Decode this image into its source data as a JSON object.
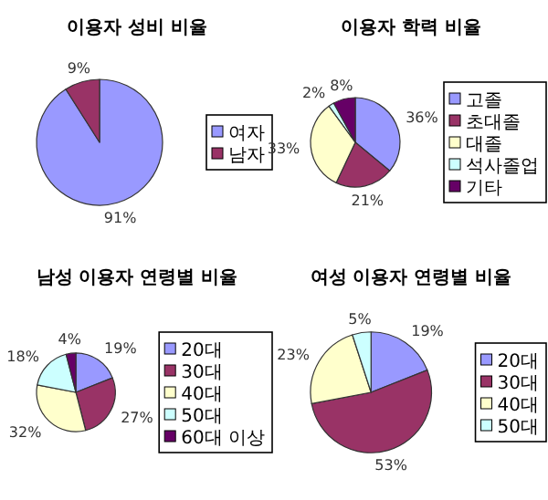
{
  "chart_data": [
    {
      "type": "pie",
      "title": "이용자 성비 비율",
      "categories": [
        "여자",
        "남자"
      ],
      "values": [
        91,
        9
      ],
      "value_labels": [
        "91%",
        "9%"
      ],
      "colors": [
        "#9999ff",
        "#993366"
      ],
      "legend": "right"
    },
    {
      "type": "pie",
      "title": "이용자 학력 비율",
      "categories": [
        "고졸",
        "초대졸",
        "대졸",
        "석사졸업",
        "기타"
      ],
      "values": [
        36,
        21,
        33,
        2,
        8
      ],
      "value_labels": [
        "36%",
        "21%",
        "33%",
        "2%",
        "8%"
      ],
      "colors": [
        "#9999ff",
        "#993366",
        "#ffffcc",
        "#ccffff",
        "#660066"
      ],
      "legend": "right"
    },
    {
      "type": "pie",
      "title": "남성 이용자 연령별 비율",
      "categories": [
        "20대",
        "30대",
        "40대",
        "50대",
        "60대 이상"
      ],
      "values": [
        19,
        27,
        32,
        18,
        4
      ],
      "value_labels": [
        "19%",
        "27%",
        "32%",
        "18%",
        "4%"
      ],
      "colors": [
        "#9999ff",
        "#993366",
        "#ffffcc",
        "#ccffff",
        "#660066"
      ],
      "legend": "right"
    },
    {
      "type": "pie",
      "title": "여성 이용자 연령별 비율",
      "categories": [
        "20대",
        "30대",
        "40대",
        "50대"
      ],
      "values": [
        19,
        53,
        23,
        5
      ],
      "value_labels": [
        "19%",
        "53%",
        "23%",
        "5%"
      ],
      "colors": [
        "#9999ff",
        "#993366",
        "#ffffcc",
        "#ccffff"
      ],
      "legend": "right"
    }
  ]
}
